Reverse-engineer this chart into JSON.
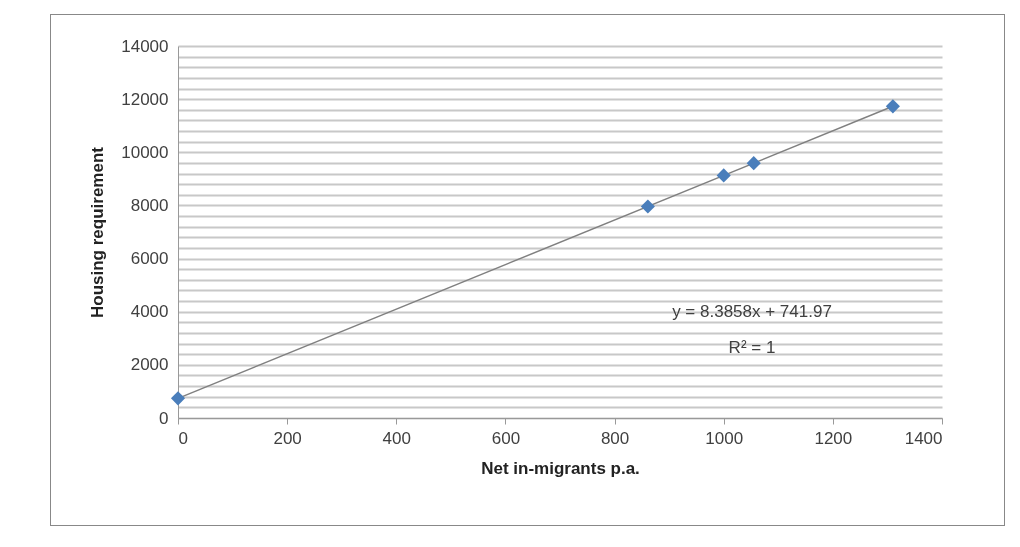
{
  "chart_data": {
    "type": "scatter",
    "xlabel": "Net in-migrants p.a.",
    "ylabel": "Housing requirement",
    "x": [
      0,
      861,
      1000,
      1055,
      1310
    ],
    "series": [
      {
        "type": "scatter",
        "color": "#4a7ebb",
        "marker": "diamond",
        "values": [
          740,
          7960,
          9130,
          9590,
          11730
        ]
      },
      {
        "type": "line",
        "color": "#808080",
        "marker": "none",
        "x": [
          0,
          1310
        ],
        "values": [
          740,
          11730
        ]
      }
    ],
    "annotations": [
      "y = 8.3858x + 741.97",
      "R² = 1"
    ],
    "xlim": [
      0,
      1400
    ],
    "xticks": [
      0,
      200,
      400,
      600,
      800,
      1000,
      1200,
      1400
    ],
    "ylim": [
      0,
      14000
    ],
    "yticks": [
      0,
      {
        "value": 400,
        "label": null
      },
      {
        "value": 800,
        "label": null
      },
      {
        "value": 1200,
        "label": null
      },
      {
        "value": 1600,
        "label": null
      },
      2000,
      {
        "value": 2400,
        "label": null
      },
      {
        "value": 2800,
        "label": null
      },
      {
        "value": 3200,
        "label": null
      },
      {
        "value": 3600,
        "label": null
      },
      4000,
      {
        "value": 4400,
        "label": null
      },
      {
        "value": 4800,
        "label": null
      },
      {
        "value": 5200,
        "label": null
      },
      {
        "value": 5600,
        "label": null
      },
      6000,
      {
        "value": 6400,
        "label": null
      },
      {
        "value": 6800,
        "label": null
      },
      {
        "value": 7200,
        "label": null
      },
      {
        "value": 7600,
        "label": null
      },
      8000,
      {
        "value": 8400,
        "label": null
      },
      {
        "value": 8800,
        "label": null
      },
      {
        "value": 9200,
        "label": null
      },
      {
        "value": 9600,
        "label": null
      },
      10000,
      {
        "value": 10400,
        "label": null
      },
      {
        "value": 10800,
        "label": null
      },
      {
        "value": 11200,
        "label": null
      },
      {
        "value": 11600,
        "label": null
      },
      12000,
      {
        "value": 12400,
        "label": null
      },
      {
        "value": 12800,
        "label": null
      },
      {
        "value": 13200,
        "label": null
      },
      {
        "value": 13600,
        "label": null
      },
      14000
    ],
    "grid": "y"
  }
}
